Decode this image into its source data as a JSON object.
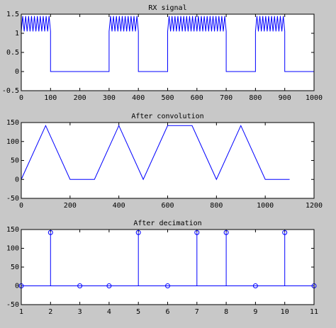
{
  "chart_data": [
    {
      "type": "line",
      "title": "RX signal",
      "color": "#0000ff",
      "x": [
        0,
        5,
        10,
        15,
        20,
        25,
        30,
        35,
        40,
        45,
        50,
        55,
        60,
        65,
        70,
        75,
        80,
        85,
        90,
        95,
        100,
        100,
        300,
        300,
        305,
        310,
        315,
        320,
        325,
        330,
        335,
        340,
        345,
        350,
        355,
        360,
        365,
        370,
        375,
        380,
        385,
        390,
        395,
        400,
        400,
        500,
        500,
        505,
        510,
        515,
        520,
        525,
        530,
        535,
        540,
        545,
        550,
        555,
        560,
        565,
        570,
        575,
        580,
        585,
        590,
        595,
        600,
        605,
        610,
        615,
        620,
        625,
        630,
        635,
        640,
        645,
        650,
        655,
        660,
        665,
        670,
        675,
        680,
        685,
        690,
        695,
        700,
        700,
        800,
        800,
        805,
        810,
        815,
        820,
        825,
        830,
        835,
        840,
        845,
        850,
        855,
        860,
        865,
        870,
        875,
        880,
        885,
        890,
        895,
        900,
        900,
        1000
      ],
      "values": [
        1.05,
        1.45,
        1.05,
        1.45,
        1.05,
        1.45,
        1.05,
        1.45,
        1.05,
        1.45,
        1.05,
        1.45,
        1.05,
        1.45,
        1.05,
        1.45,
        1.05,
        1.45,
        1.05,
        1.45,
        1.05,
        0,
        0,
        1.05,
        1.45,
        1.05,
        1.45,
        1.05,
        1.45,
        1.05,
        1.45,
        1.05,
        1.45,
        1.05,
        1.45,
        1.05,
        1.45,
        1.05,
        1.45,
        1.05,
        1.45,
        1.05,
        1.45,
        1.05,
        0,
        0,
        1.05,
        1.45,
        1.05,
        1.45,
        1.05,
        1.45,
        1.05,
        1.45,
        1.05,
        1.45,
        1.05,
        1.45,
        1.05,
        1.45,
        1.05,
        1.45,
        1.05,
        1.45,
        1.05,
        1.45,
        1.05,
        1.45,
        1.05,
        1.45,
        1.05,
        1.45,
        1.05,
        1.45,
        1.05,
        1.45,
        1.05,
        1.45,
        1.05,
        1.45,
        1.05,
        1.45,
        1.05,
        1.45,
        1.05,
        1.45,
        1.05,
        0,
        0,
        1.05,
        1.45,
        1.05,
        1.45,
        1.05,
        1.45,
        1.05,
        1.45,
        1.05,
        1.45,
        1.05,
        1.45,
        1.05,
        1.45,
        1.05,
        1.45,
        1.05,
        1.45,
        1.05,
        1.45,
        1.05,
        0,
        0
      ],
      "xlim": [
        0,
        1000
      ],
      "xticks": [
        0,
        100,
        200,
        300,
        400,
        500,
        600,
        700,
        800,
        900,
        1000
      ],
      "ylim": [
        -0.5,
        1.5
      ],
      "yticks": [
        -0.5,
        0,
        0.5,
        1,
        1.5
      ]
    },
    {
      "type": "line",
      "title": "After convolution",
      "color": "#0000ff",
      "x": [
        0,
        100,
        200,
        300,
        400,
        500,
        600,
        700,
        800,
        900,
        1000,
        1100
      ],
      "values": [
        0,
        142,
        0,
        0,
        142,
        0,
        142,
        142,
        0,
        142,
        0,
        0
      ],
      "xlim": [
        0,
        1200
      ],
      "xticks": [
        0,
        200,
        400,
        600,
        800,
        1000,
        1200
      ],
      "ylim": [
        -50,
        150
      ],
      "yticks": [
        -50,
        0,
        50,
        100,
        150
      ]
    },
    {
      "type": "stem",
      "title": "After decimation",
      "color": "#0000ff",
      "x": [
        1,
        2,
        3,
        4,
        5,
        6,
        7,
        8,
        9,
        10,
        11
      ],
      "values": [
        0,
        142,
        0,
        0,
        142,
        0,
        142,
        142,
        0,
        142,
        0
      ],
      "xlim": [
        1,
        11
      ],
      "xticks": [
        1,
        2,
        3,
        4,
        5,
        6,
        7,
        8,
        9,
        10,
        11
      ],
      "ylim": [
        -50,
        150
      ],
      "yticks": [
        -50,
        0,
        50,
        100,
        150
      ]
    }
  ]
}
